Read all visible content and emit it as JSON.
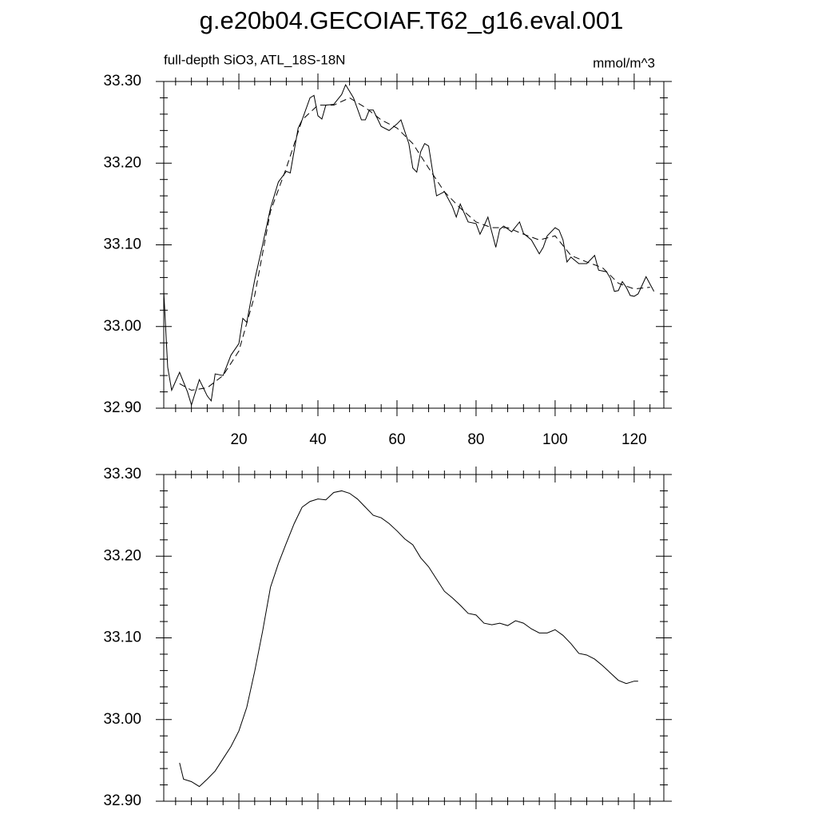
{
  "chart_data": [
    {
      "type": "line",
      "title": "g.e20b04.GECOIAF.T62_g16.eval.001",
      "subtitle": "full-depth SiO3, ATL_18S-18N",
      "units": "mmol/m^3",
      "xlim": [
        1,
        127.5
      ],
      "xticks": [
        20,
        40,
        60,
        80,
        100,
        120
      ],
      "ylim": [
        32.9,
        33.3
      ],
      "yticks": [
        {
          "value": 32.9,
          "label": "32.90"
        },
        {
          "value": 33.0,
          "label": "33.00"
        },
        {
          "value": 33.1,
          "label": "33.10"
        },
        {
          "value": 33.2,
          "label": "33.20"
        },
        {
          "value": 33.3,
          "label": "33.30"
        }
      ],
      "color": "#000000",
      "series": [
        {
          "dash": false,
          "x": [
            1,
            2,
            3,
            5,
            7,
            8,
            10,
            12,
            13,
            14,
            16,
            18,
            20,
            21,
            22,
            24,
            26,
            28,
            30,
            32,
            33,
            35,
            36,
            38,
            39,
            40,
            41,
            42,
            44,
            46,
            47,
            49,
            51,
            52,
            53,
            54,
            56,
            58,
            60,
            61,
            63,
            64,
            65,
            66,
            67,
            68,
            70,
            72,
            74,
            75,
            76,
            78,
            80,
            81,
            82,
            83,
            85,
            86,
            87,
            89,
            91,
            92,
            94,
            96,
            97,
            98,
            100,
            101,
            102,
            103,
            104,
            106,
            108,
            110,
            111,
            113,
            114,
            115,
            116,
            117,
            118,
            119,
            120,
            121,
            123,
            125
          ],
          "values": [
            33.043,
            32.95,
            32.922,
            32.944,
            32.92,
            32.904,
            32.935,
            32.915,
            32.909,
            32.942,
            32.94,
            32.965,
            32.979,
            33.01,
            33.005,
            33.057,
            33.1,
            33.145,
            33.177,
            33.19,
            33.188,
            33.243,
            33.253,
            33.28,
            33.283,
            33.258,
            33.254,
            33.271,
            33.272,
            33.284,
            33.296,
            33.28,
            33.253,
            33.253,
            33.265,
            33.265,
            33.245,
            33.24,
            33.248,
            33.253,
            33.224,
            33.194,
            33.189,
            33.214,
            33.224,
            33.221,
            33.16,
            33.165,
            33.147,
            33.134,
            33.15,
            33.128,
            33.126,
            33.113,
            33.123,
            33.134,
            33.097,
            33.119,
            33.123,
            33.116,
            33.128,
            33.114,
            33.106,
            33.089,
            33.097,
            33.111,
            33.121,
            33.118,
            33.106,
            33.079,
            33.085,
            33.077,
            33.077,
            33.087,
            33.069,
            33.067,
            33.059,
            33.043,
            33.044,
            33.055,
            33.048,
            33.038,
            33.037,
            33.04,
            33.061,
            33.043
          ]
        },
        {
          "dash": true,
          "x": [
            5,
            8,
            12,
            16,
            20,
            24,
            28,
            32,
            36,
            40,
            44,
            48,
            52,
            56,
            60,
            64,
            68,
            72,
            76,
            80,
            84,
            88,
            92,
            96,
            100,
            104,
            108,
            112,
            116,
            120,
            124
          ],
          "values": [
            32.93,
            32.922,
            32.925,
            32.94,
            32.97,
            33.038,
            33.141,
            33.194,
            33.253,
            33.271,
            33.271,
            33.28,
            33.268,
            33.253,
            33.243,
            33.224,
            33.194,
            33.165,
            33.145,
            33.128,
            33.121,
            33.121,
            33.113,
            33.106,
            33.111,
            33.087,
            33.079,
            33.072,
            33.053,
            33.046,
            33.048
          ]
        }
      ]
    },
    {
      "type": "line",
      "xlim": [
        1,
        127.5
      ],
      "xticks": [
        20,
        40,
        60,
        80,
        100,
        120
      ],
      "ylim": [
        32.9,
        33.3
      ],
      "yticks": [
        {
          "value": 32.9,
          "label": "32.90"
        },
        {
          "value": 33.0,
          "label": "33.00"
        },
        {
          "value": 33.1,
          "label": "33.10"
        },
        {
          "value": 33.2,
          "label": "33.20"
        },
        {
          "value": 33.3,
          "label": "33.30"
        }
      ],
      "color": "#000000",
      "series": [
        {
          "dash": false,
          "x": [
            5,
            6,
            8,
            10,
            12,
            14,
            16,
            18,
            20,
            22,
            24,
            26,
            28,
            30,
            32,
            34,
            36,
            38,
            40,
            42,
            44,
            46,
            48,
            50,
            52,
            54,
            56,
            58,
            60,
            62,
            64,
            66,
            68,
            70,
            72,
            74,
            76,
            78,
            80,
            82,
            84,
            86,
            88,
            90,
            92,
            94,
            96,
            98,
            100,
            102,
            104,
            106,
            108,
            110,
            112,
            114,
            116,
            118,
            120,
            121
          ],
          "values": [
            32.947,
            32.927,
            32.924,
            32.918,
            32.927,
            32.937,
            32.952,
            32.967,
            32.986,
            33.015,
            33.059,
            33.108,
            33.162,
            33.191,
            33.216,
            33.24,
            33.26,
            33.267,
            33.27,
            33.269,
            33.278,
            33.28,
            33.277,
            33.27,
            33.26,
            33.25,
            33.247,
            33.24,
            33.231,
            33.221,
            33.214,
            33.198,
            33.187,
            33.172,
            33.157,
            33.149,
            33.14,
            33.13,
            33.128,
            33.118,
            33.116,
            33.118,
            33.115,
            33.121,
            33.118,
            33.111,
            33.106,
            33.106,
            33.11,
            33.103,
            33.093,
            33.081,
            33.079,
            33.074,
            33.066,
            33.057,
            33.048,
            33.044,
            33.047,
            33.047
          ]
        }
      ]
    }
  ]
}
